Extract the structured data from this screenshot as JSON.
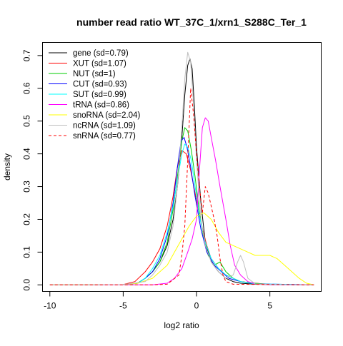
{
  "chart_data": {
    "type": "line",
    "title": "number read ratio WT_37C_1/xrn1_S288C_Ter_1",
    "xlabel": "log2 ratio",
    "ylabel": "density",
    "xlim": [
      -10.5,
      8.5
    ],
    "ylim": [
      -0.02,
      0.74
    ],
    "xticks": [
      -10,
      -5,
      0,
      5
    ],
    "yticks": [
      0.0,
      0.1,
      0.2,
      0.3,
      0.4,
      0.5,
      0.6,
      0.7
    ],
    "grid": false,
    "legend_position": "top-left",
    "series": [
      {
        "name": "gene (sd=0.79)",
        "color": "#000000",
        "dash": false,
        "x": [
          -10,
          -5,
          -4,
          -3.5,
          -3,
          -2.5,
          -2,
          -1.6,
          -1.3,
          -1.0,
          -0.8,
          -0.6,
          -0.45,
          -0.3,
          -0.15,
          0,
          0.3,
          0.6,
          1.0,
          1.5,
          2,
          2.5,
          3,
          4,
          5,
          8
        ],
        "y": [
          0,
          0.001,
          0.005,
          0.02,
          0.04,
          0.07,
          0.12,
          0.2,
          0.3,
          0.45,
          0.58,
          0.67,
          0.69,
          0.66,
          0.55,
          0.42,
          0.25,
          0.13,
          0.07,
          0.04,
          0.02,
          0.01,
          0.005,
          0.002,
          0.001,
          0
        ]
      },
      {
        "name": "XUT (sd=1.07)",
        "color": "#ff0000",
        "dash": false,
        "x": [
          -10,
          -5,
          -4.2,
          -3.5,
          -3,
          -2.5,
          -2,
          -1.6,
          -1.3,
          -1.0,
          -0.7,
          -0.4,
          -0.1,
          0.3,
          0.7,
          1.0,
          1.5,
          2.0,
          2.5,
          3,
          4,
          5,
          8
        ],
        "y": [
          0,
          0.001,
          0.01,
          0.04,
          0.07,
          0.11,
          0.18,
          0.27,
          0.36,
          0.41,
          0.4,
          0.35,
          0.28,
          0.19,
          0.12,
          0.08,
          0.05,
          0.03,
          0.02,
          0.01,
          0.005,
          0.002,
          0
        ]
      },
      {
        "name": "NUT (sd=1)",
        "color": "#00cd00",
        "dash": false,
        "x": [
          -10,
          -5,
          -4,
          -3.5,
          -3,
          -2.5,
          -2,
          -1.6,
          -1.3,
          -1.0,
          -0.8,
          -0.6,
          -0.35,
          -0.1,
          0.2,
          0.5,
          0.8,
          1.2,
          1.6,
          2,
          2.5,
          3,
          4,
          5,
          8
        ],
        "y": [
          0,
          0.001,
          0.006,
          0.02,
          0.04,
          0.07,
          0.13,
          0.23,
          0.33,
          0.44,
          0.48,
          0.47,
          0.41,
          0.33,
          0.22,
          0.14,
          0.09,
          0.06,
          0.07,
          0.04,
          0.02,
          0.01,
          0.005,
          0.001,
          0
        ]
      },
      {
        "name": "CUT (sd=0.93)",
        "color": "#0000ff",
        "dash": false,
        "x": [
          -10,
          -5,
          -4,
          -3.5,
          -3,
          -2.5,
          -2,
          -1.6,
          -1.3,
          -1.05,
          -0.85,
          -0.65,
          -0.4,
          -0.1,
          0.3,
          0.7,
          1.2,
          1.7,
          2.2,
          3,
          4,
          8
        ],
        "y": [
          0,
          0.001,
          0.005,
          0.02,
          0.04,
          0.08,
          0.15,
          0.25,
          0.36,
          0.44,
          0.45,
          0.42,
          0.36,
          0.27,
          0.17,
          0.1,
          0.06,
          0.04,
          0.02,
          0.01,
          0.003,
          0
        ]
      },
      {
        "name": "SUT (sd=0.99)",
        "color": "#00ffff",
        "dash": false,
        "x": [
          -10,
          -5,
          -4,
          -3.5,
          -3,
          -2.5,
          -2,
          -1.6,
          -1.3,
          -1.0,
          -0.8,
          -0.6,
          -0.35,
          -0.1,
          0.2,
          0.6,
          1.0,
          1.5,
          2,
          2.5,
          3,
          4,
          8
        ],
        "y": [
          0,
          0.001,
          0.005,
          0.02,
          0.05,
          0.09,
          0.16,
          0.24,
          0.32,
          0.4,
          0.43,
          0.42,
          0.38,
          0.3,
          0.21,
          0.13,
          0.08,
          0.05,
          0.03,
          0.02,
          0.01,
          0.003,
          0
        ]
      },
      {
        "name": "tRNA (sd=0.86)",
        "color": "#ff00ff",
        "dash": false,
        "x": [
          -10,
          -5,
          -3,
          -2,
          -1.5,
          -1,
          -0.6,
          -0.3,
          0,
          0.2,
          0.4,
          0.6,
          0.8,
          1.0,
          1.3,
          1.6,
          2.0,
          2.3,
          2.6,
          3.0,
          3.5,
          4,
          5,
          8
        ],
        "y": [
          0,
          0,
          0,
          0.005,
          0.02,
          0.05,
          0.1,
          0.14,
          0.2,
          0.35,
          0.48,
          0.51,
          0.5,
          0.45,
          0.38,
          0.3,
          0.2,
          0.12,
          0.06,
          0.03,
          0.01,
          0.003,
          0,
          0
        ]
      },
      {
        "name": "snoRNA (sd=2.04)",
        "color": "#ffff00",
        "dash": false,
        "x": [
          -10,
          -5,
          -4,
          -3,
          -2,
          -1.5,
          -1,
          -0.5,
          0,
          0.5,
          1,
          1.5,
          2,
          2.5,
          3,
          3.5,
          4,
          4.5,
          5,
          5.5,
          6,
          7,
          7.5,
          8
        ],
        "y": [
          0,
          0.001,
          0.005,
          0.02,
          0.06,
          0.1,
          0.14,
          0.18,
          0.21,
          0.22,
          0.2,
          0.16,
          0.13,
          0.12,
          0.11,
          0.1,
          0.09,
          0.09,
          0.09,
          0.08,
          0.06,
          0.02,
          0.005,
          0
        ]
      },
      {
        "name": "ncRNA (sd=1.09)",
        "color": "#bebebe",
        "dash": false,
        "x": [
          -10,
          -5,
          -3.5,
          -3,
          -2.5,
          -2,
          -1.6,
          -1.3,
          -1.0,
          -0.8,
          -0.6,
          -0.4,
          -0.2,
          0,
          0.3,
          0.6,
          1.0,
          1.5,
          2.0,
          2.5,
          2.8,
          3.0,
          3.2,
          3.5,
          4,
          5,
          8
        ],
        "y": [
          0,
          0.001,
          0.01,
          0.03,
          0.06,
          0.1,
          0.18,
          0.3,
          0.48,
          0.63,
          0.71,
          0.68,
          0.55,
          0.38,
          0.2,
          0.12,
          0.07,
          0.04,
          0.02,
          0.03,
          0.07,
          0.09,
          0.07,
          0.02,
          0.003,
          0.001,
          0
        ]
      },
      {
        "name": "snRNA (sd=0.77)",
        "color": "#ff0000",
        "dash": true,
        "x": [
          -10,
          -3,
          -2,
          -1.2,
          -1.0,
          -0.8,
          -0.6,
          -0.4,
          -0.2,
          0,
          0.2,
          0.4,
          0.6,
          0.8,
          1.0,
          1.2,
          1.4,
          1.6,
          1.8,
          2.0,
          2.5,
          8
        ],
        "y": [
          0,
          0,
          0.002,
          0.03,
          0.09,
          0.18,
          0.38,
          0.6,
          0.52,
          0.4,
          0.3,
          0.22,
          0.3,
          0.28,
          0.24,
          0.2,
          0.15,
          0.08,
          0.03,
          0.01,
          0.002,
          0
        ]
      }
    ]
  }
}
